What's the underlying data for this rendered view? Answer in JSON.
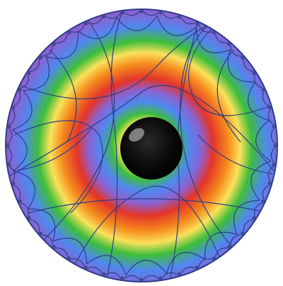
{
  "graphic": {
    "icon": "hyperbolic-tiling-disc-with-black-hole",
    "colors": {
      "background": "#ffffff",
      "tiling_lines": "#2c3f86",
      "rim": "#2d3c8a",
      "hole": "#050505",
      "hole_highlight": "#ffffff",
      "ring_red": "#e4342a",
      "ring_orange": "#f58a1d",
      "ring_yellow": "#fbe15a",
      "ring_green": "#3dbe3b",
      "ring_blue": "#4f88f0",
      "ring_violet": "#8a63d2"
    }
  }
}
